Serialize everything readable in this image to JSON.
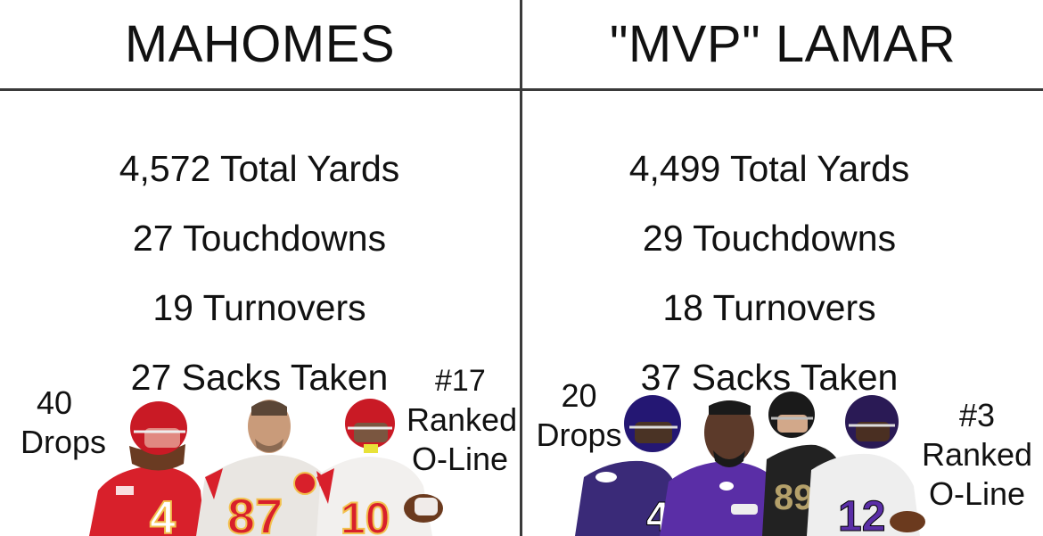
{
  "left": {
    "title": "MAHOMES",
    "stats": [
      "4,572 Total Yards",
      "27 Touchdowns",
      "19 Turnovers",
      "27 Sacks Taken"
    ],
    "drops_number": "40",
    "drops_label": "Drops",
    "oline_rank": "#17",
    "oline_ranked": "Ranked",
    "oline_label": "O-Line",
    "players": [
      {
        "jersey": "4",
        "color": "#d8202b"
      },
      {
        "jersey": "87",
        "color": "#e9e6e2"
      },
      {
        "jersey": "10",
        "color": "#f2f0ee"
      }
    ]
  },
  "right": {
    "title": "\"MVP\" LAMAR",
    "stats": [
      "4,499 Total Yards",
      "29 Touchdowns",
      "18 Turnovers",
      "37 Sacks Taken"
    ],
    "drops_number": "20",
    "drops_label": "Drops",
    "oline_rank": "#3",
    "oline_ranked": "Ranked",
    "oline_label": "O-Line",
    "players": [
      {
        "jersey": "4",
        "color": "#3a2a78"
      },
      {
        "jersey": "",
        "color": "#5a2ea6"
      },
      {
        "jersey": "89",
        "color": "#222222"
      },
      {
        "jersey": "12",
        "color": "#eeeeee"
      }
    ]
  }
}
